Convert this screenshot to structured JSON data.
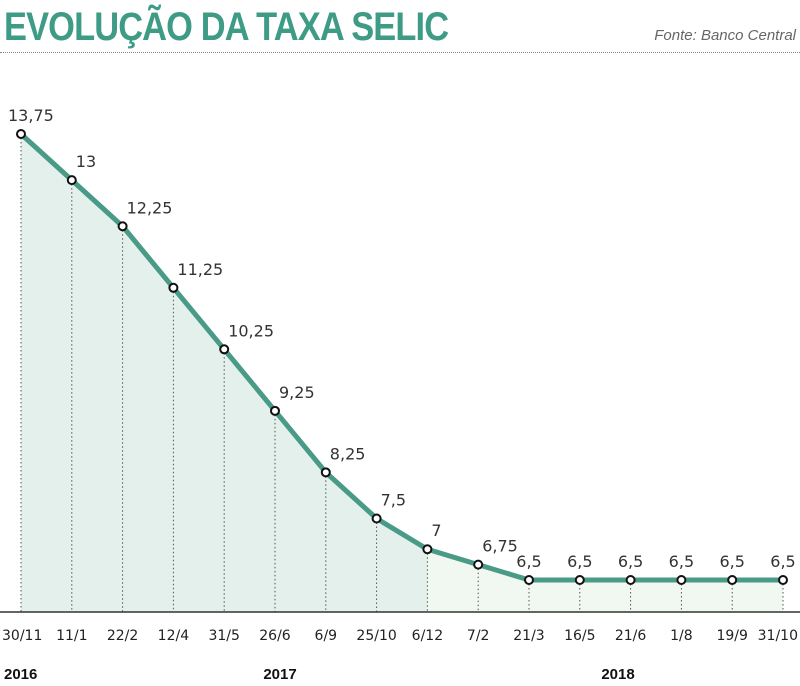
{
  "header": {
    "title": "EVOLUÇÃO DA TAXA SELIC",
    "source": "Fonte: Banco Central"
  },
  "colors": {
    "title": "#3e9b86",
    "line": "#4a9a88",
    "fill_dark": "#e3f0eb",
    "fill_light": "#f1f8f1"
  },
  "chart_data": {
    "type": "line",
    "categories": [
      "30/11",
      "11/1",
      "22/2",
      "12/4",
      "31/5",
      "26/6",
      "6/9",
      "25/10",
      "6/12",
      "7/2",
      "21/3",
      "16/5",
      "21/6",
      "1/8",
      "19/9",
      "31/10"
    ],
    "values": [
      13.75,
      13,
      12.25,
      11.25,
      10.25,
      9.25,
      8.25,
      7.5,
      7,
      6.75,
      6.5,
      6.5,
      6.5,
      6.5,
      6.5,
      6.5
    ],
    "data_labels": [
      "13,75",
      "13",
      "12,25",
      "11,25",
      "10,25",
      "9,25",
      "8,25",
      "7,5",
      "7",
      "6,75",
      "6,5",
      "6,5",
      "6,5",
      "6,5",
      "6,5",
      "6,5"
    ],
    "years": [
      {
        "label": "2016",
        "start_index": 0
      },
      {
        "label": "2017",
        "start_index": 1
      },
      {
        "label": "2018",
        "start_index": 9
      }
    ],
    "grid": false,
    "legend": "none"
  }
}
